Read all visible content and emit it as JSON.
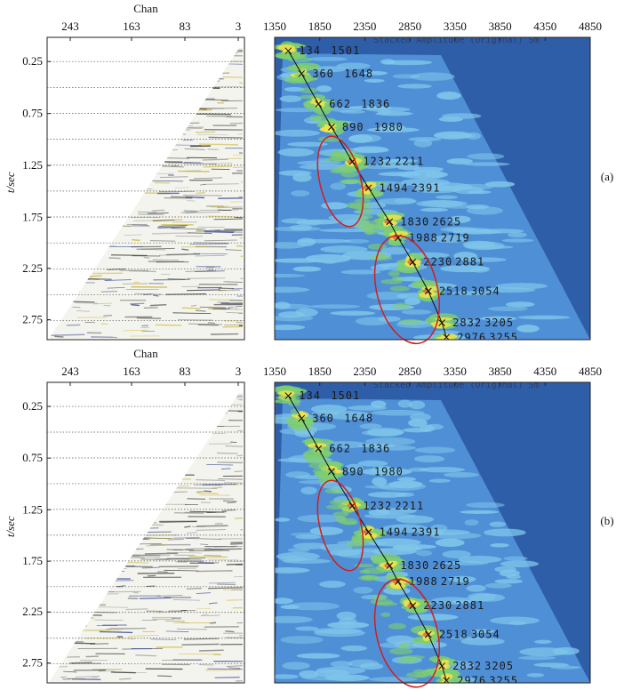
{
  "panels": [
    {
      "id": "a",
      "label": "(a)",
      "gather": {
        "xlabel": "Chan",
        "xticks": [
          "243",
          "163",
          "83",
          "3"
        ],
        "ylabel": "t/sec",
        "yticks": [
          "0.25",
          "0.75",
          "1.25",
          "1.75",
          "2.25",
          "2.75"
        ]
      },
      "semblance": {
        "header": "Stacked Amplitude (Original) Sm",
        "xticks": [
          "1350",
          "1850",
          "2350",
          "2850",
          "3350",
          "3850",
          "4350",
          "4850"
        ],
        "picks": [
          {
            "t": "134",
            "v": "1501"
          },
          {
            "t": "360",
            "v": "1648"
          },
          {
            "t": "662",
            "v": "1836"
          },
          {
            "t": "890",
            "v": "1980"
          },
          {
            "t": "1232",
            "v": "2211"
          },
          {
            "t": "1494",
            "v": "2391"
          },
          {
            "t": "1830",
            "v": "2625"
          },
          {
            "t": "1988",
            "v": "2719"
          },
          {
            "t": "2230",
            "v": "2881"
          },
          {
            "t": "2518",
            "v": "3054"
          },
          {
            "t": "2832",
            "v": "3205"
          },
          {
            "t": "2976",
            "v": "3255"
          }
        ]
      }
    },
    {
      "id": "b",
      "label": "(b)",
      "gather": {
        "xlabel": "Chan",
        "xticks": [
          "243",
          "163",
          "83",
          "3"
        ],
        "ylabel": "t/sec",
        "yticks": [
          "0.25",
          "0.75",
          "1.25",
          "1.75",
          "2.25",
          "2.75"
        ]
      },
      "semblance": {
        "header": "Stacked Amplitude (Original) Sm",
        "xticks": [
          "1350",
          "1850",
          "2350",
          "2850",
          "3350",
          "3850",
          "4350",
          "4850"
        ],
        "picks": [
          {
            "t": "134",
            "v": "1501"
          },
          {
            "t": "360",
            "v": "1648"
          },
          {
            "t": "662",
            "v": "1836"
          },
          {
            "t": "890",
            "v": "1980"
          },
          {
            "t": "1232",
            "v": "2211"
          },
          {
            "t": "1494",
            "v": "2391"
          },
          {
            "t": "1830",
            "v": "2625"
          },
          {
            "t": "1988",
            "v": "2719"
          },
          {
            "t": "2230",
            "v": "2881"
          },
          {
            "t": "2518",
            "v": "3054"
          },
          {
            "t": "2832",
            "v": "3205"
          },
          {
            "t": "2976",
            "v": "3255"
          }
        ]
      }
    }
  ],
  "colors": {
    "bg_dark": "#2f5ea8",
    "bg_mid": "#4f8fd6",
    "bg_light": "#7fc6ea",
    "green": "#7fcf6f",
    "yellow": "#f2e24a",
    "red_peak": "#e0503a",
    "ellipse": "#d21e1e",
    "pick_line": "#111111"
  }
}
